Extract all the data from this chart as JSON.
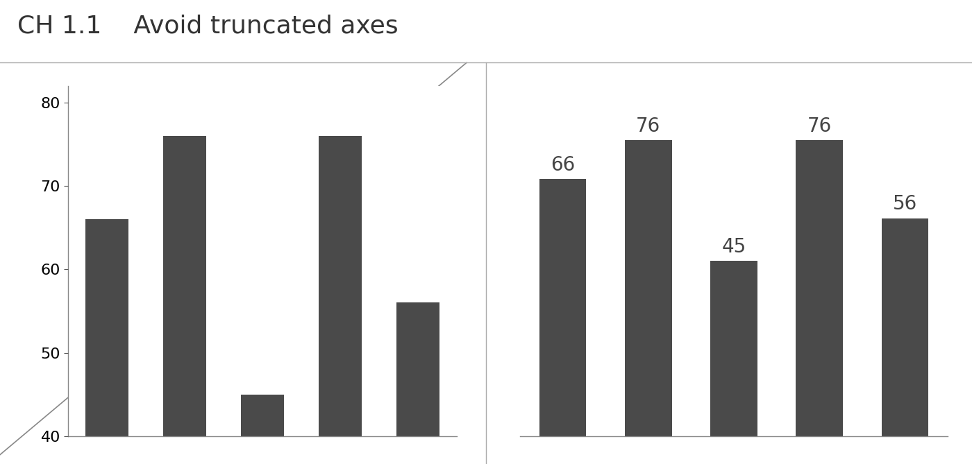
{
  "title": "CH 1.1    Avoid truncated axes",
  "values": [
    66,
    76,
    45,
    76,
    56
  ],
  "bar_color": "#4a4a4a",
  "left_ylim": [
    40,
    82
  ],
  "left_yticks": [
    40,
    50,
    60,
    70,
    80
  ],
  "right_ylim": [
    0,
    90
  ],
  "background_color": "#ffffff",
  "bar_width": 0.55,
  "fontsize_title": 26,
  "fontsize_ticks": 16,
  "fontsize_labels": 20,
  "spine_color": "#888888",
  "tick_color": "#555555",
  "text_color": "#444444",
  "diag_line_color": "#888888",
  "divider_color": "#aaaaaa",
  "title_color": "#333333"
}
